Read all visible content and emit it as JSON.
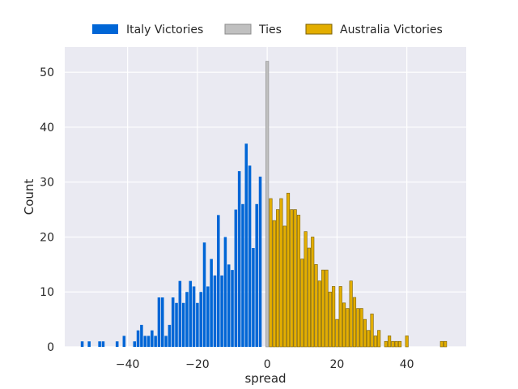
{
  "chart_data": {
    "type": "bar",
    "title": "",
    "xlabel": "spread",
    "ylabel": "Count",
    "xlim": [
      -58,
      57
    ],
    "ylim": [
      0,
      54.6
    ],
    "xticks": [
      -40,
      -20,
      0,
      20,
      40
    ],
    "yticks": [
      0,
      10,
      20,
      30,
      40,
      50
    ],
    "grid": true,
    "legend_position": "top",
    "series": [
      {
        "name": "Italy Victories",
        "color": "#0066d6",
        "edgecolor": "none",
        "x": [
          -53,
          -51,
          -48,
          -47,
          -43,
          -41,
          -38,
          -37,
          -36,
          -35,
          -34,
          -33,
          -32,
          -31,
          -30,
          -29,
          -28,
          -27,
          -26,
          -25,
          -24,
          -23,
          -22,
          -21,
          -20,
          -19,
          -18,
          -17,
          -16,
          -15,
          -14,
          -13,
          -12,
          -11,
          -10,
          -9,
          -8,
          -7,
          -6,
          -5,
          -4,
          -3,
          -2,
          -1
        ],
        "values": [
          1,
          1,
          1,
          1,
          1,
          2,
          1,
          3,
          4,
          2,
          2,
          3,
          2,
          9,
          9,
          2,
          4,
          9,
          8,
          12,
          8,
          10,
          12,
          11,
          8,
          10,
          19,
          11,
          16,
          13,
          24,
          13,
          20,
          15,
          14,
          25,
          32,
          26,
          37,
          33,
          18,
          26,
          31,
          0
        ]
      },
      {
        "name": "Ties",
        "color": "#c0c0c0",
        "edgecolor": "#8c8c8c",
        "x": [
          0
        ],
        "values": [
          52
        ]
      },
      {
        "name": "Australia Victories",
        "color": "#e3ae00",
        "edgecolor": "#7a5f00",
        "x": [
          1,
          2,
          3,
          4,
          5,
          6,
          7,
          8,
          9,
          10,
          11,
          12,
          13,
          14,
          15,
          16,
          17,
          18,
          19,
          20,
          21,
          22,
          23,
          24,
          25,
          26,
          27,
          28,
          29,
          30,
          31,
          32,
          34,
          35,
          36,
          37,
          38,
          40,
          50,
          51
        ],
        "values": [
          27,
          23,
          25,
          27,
          22,
          28,
          25,
          25,
          24,
          16,
          21,
          18,
          20,
          15,
          12,
          14,
          14,
          10,
          11,
          5,
          11,
          8,
          7,
          12,
          9,
          7,
          7,
          5,
          3,
          6,
          2,
          3,
          1,
          2,
          1,
          1,
          1,
          2,
          1,
          1
        ]
      }
    ]
  }
}
